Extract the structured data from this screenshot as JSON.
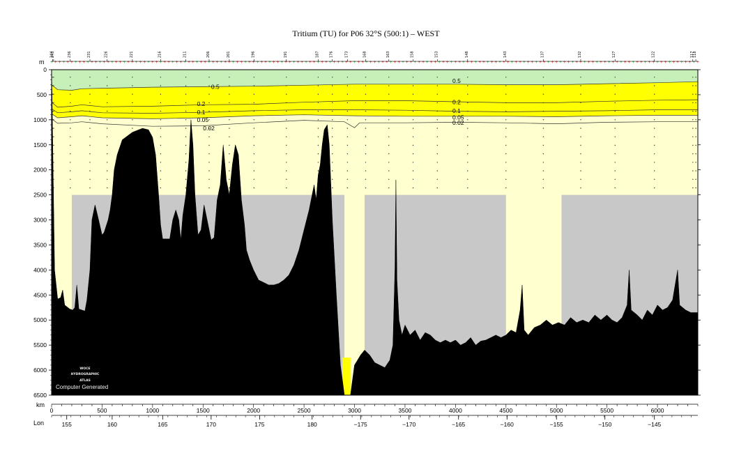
{
  "title": "Tritium (TU) for P06 32°S (500:1) – WEST",
  "logo": {
    "lines": [
      "WOCE",
      "HYDROGRAPHIC",
      "ATLAS"
    ],
    "generated": "Computer Generated"
  },
  "chart_data": {
    "type": "area",
    "title": "Tritium (TU) for P06 32°S (500:1) – WEST",
    "variable": "Tritium (TU)",
    "x_axis": {
      "label": "km",
      "range": [
        0,
        6400
      ],
      "ticks": [
        0,
        500,
        1000,
        1500,
        2000,
        2500,
        3000,
        3500,
        4000,
        4500,
        5000,
        5500,
        6000
      ]
    },
    "lon_axis": {
      "label": "Lon",
      "ticks": [
        {
          "km": 150,
          "label": "155"
        },
        {
          "km": 600,
          "label": "160"
        },
        {
          "km": 1100,
          "label": "165"
        },
        {
          "km": 1580,
          "label": "170"
        },
        {
          "km": 2060,
          "label": "175"
        },
        {
          "km": 2580,
          "label": "180"
        },
        {
          "km": 3060,
          "label": "−175"
        },
        {
          "km": 3540,
          "label": "−170"
        },
        {
          "km": 4030,
          "label": "−165"
        },
        {
          "km": 4510,
          "label": "−160"
        },
        {
          "km": 5000,
          "label": "−155"
        },
        {
          "km": 5480,
          "label": "−150"
        },
        {
          "km": 5970,
          "label": "−145"
        }
      ]
    },
    "y_axis": {
      "label": "m",
      "range": [
        0,
        6500
      ],
      "inverted": true,
      "ticks": [
        0,
        500,
        1000,
        1500,
        2000,
        2500,
        3000,
        3500,
        4000,
        4500,
        5000,
        5500,
        6000,
        6500
      ]
    },
    "stations": [
      {
        "km": 10,
        "label": "244"
      },
      {
        "km": 20,
        "label": "241"
      },
      {
        "km": 185,
        "label": "236"
      },
      {
        "km": 380,
        "label": "231"
      },
      {
        "km": 550,
        "label": "226"
      },
      {
        "km": 800,
        "label": "221"
      },
      {
        "km": 1080,
        "label": "216"
      },
      {
        "km": 1330,
        "label": "211"
      },
      {
        "km": 1560,
        "label": "206"
      },
      {
        "km": 1760,
        "label": "201"
      },
      {
        "km": 2005,
        "label": "196"
      },
      {
        "km": 2325,
        "label": "191"
      },
      {
        "km": 2640,
        "label": "187"
      },
      {
        "km": 2780,
        "label": "176"
      },
      {
        "km": 2930,
        "label": "173"
      },
      {
        "km": 3110,
        "label": "168"
      },
      {
        "km": 3340,
        "label": "163"
      },
      {
        "km": 3580,
        "label": "158"
      },
      {
        "km": 3820,
        "label": "153"
      },
      {
        "km": 4120,
        "label": "148"
      },
      {
        "km": 4500,
        "label": "143"
      },
      {
        "km": 4870,
        "label": "137"
      },
      {
        "km": 5240,
        "label": "132"
      },
      {
        "km": 5580,
        "label": "127"
      },
      {
        "km": 5970,
        "label": "122"
      },
      {
        "km": 6350,
        "label": "117"
      },
      {
        "km": 6380,
        "label": "118"
      }
    ],
    "contours": [
      {
        "level": "0.5",
        "color": "#c6f0b8",
        "depths": [
          [
            0,
            300
          ],
          [
            60,
            400
          ],
          [
            200,
            410
          ],
          [
            300,
            380
          ],
          [
            500,
            370
          ],
          [
            1000,
            350
          ],
          [
            1500,
            340
          ],
          [
            2000,
            330
          ],
          [
            2500,
            310
          ],
          [
            3000,
            290
          ],
          [
            3500,
            290
          ],
          [
            4000,
            290
          ],
          [
            4500,
            300
          ],
          [
            5000,
            300
          ],
          [
            5500,
            280
          ],
          [
            6000,
            260
          ],
          [
            6400,
            240
          ]
        ]
      },
      {
        "level": "0.2",
        "color": "#ffff00",
        "depths": [
          [
            0,
            650
          ],
          [
            60,
            750
          ],
          [
            200,
            730
          ],
          [
            300,
            700
          ],
          [
            500,
            740
          ],
          [
            1000,
            730
          ],
          [
            1500,
            700
          ],
          [
            2000,
            690
          ],
          [
            2500,
            650
          ],
          [
            3000,
            620
          ],
          [
            3500,
            620
          ],
          [
            4000,
            640
          ],
          [
            4500,
            660
          ],
          [
            5000,
            660
          ],
          [
            5500,
            630
          ],
          [
            6000,
            610
          ],
          [
            6400,
            600
          ]
        ]
      },
      {
        "level": "0.1",
        "color": "#ffff00",
        "depths": [
          [
            0,
            780
          ],
          [
            60,
            860
          ],
          [
            200,
            840
          ],
          [
            300,
            820
          ],
          [
            500,
            860
          ],
          [
            1000,
            870
          ],
          [
            1500,
            850
          ],
          [
            2000,
            820
          ],
          [
            2500,
            800
          ],
          [
            3000,
            800
          ],
          [
            3500,
            810
          ],
          [
            4000,
            830
          ],
          [
            4500,
            840
          ],
          [
            5000,
            830
          ],
          [
            5500,
            820
          ],
          [
            6000,
            800
          ],
          [
            6400,
            800
          ]
        ]
      },
      {
        "level": "0.05",
        "color": "#ffff00",
        "depths": [
          [
            0,
            880
          ],
          [
            60,
            960
          ],
          [
            200,
            940
          ],
          [
            300,
            920
          ],
          [
            500,
            960
          ],
          [
            1000,
            980
          ],
          [
            1500,
            960
          ],
          [
            2000,
            920
          ],
          [
            2500,
            900
          ],
          [
            3000,
            920
          ],
          [
            3500,
            930
          ],
          [
            4000,
            930
          ],
          [
            4500,
            930
          ],
          [
            5000,
            940
          ],
          [
            5500,
            920
          ],
          [
            6000,
            910
          ],
          [
            6400,
            910
          ]
        ]
      },
      {
        "level": "0.02",
        "color": "#ffffd0",
        "depths": [
          [
            0,
            980
          ],
          [
            60,
            1070
          ],
          [
            200,
            1060
          ],
          [
            300,
            1040
          ],
          [
            500,
            1080
          ],
          [
            1000,
            1130
          ],
          [
            1500,
            1120
          ],
          [
            2000,
            1060
          ],
          [
            2500,
            1010
          ],
          [
            2900,
            1040
          ],
          [
            3000,
            1160
          ],
          [
            3050,
            1060
          ],
          [
            3500,
            1060
          ],
          [
            4000,
            1050
          ],
          [
            4500,
            1060
          ],
          [
            5000,
            1080
          ],
          [
            5500,
            1050
          ],
          [
            6000,
            1040
          ],
          [
            6400,
            1040
          ]
        ]
      }
    ],
    "contour_labels": [
      {
        "text": "0.5",
        "km": 1580,
        "depth": 340
      },
      {
        "text": "0.2",
        "km": 1440,
        "depth": 680
      },
      {
        "text": "0.1",
        "km": 1440,
        "depth": 850
      },
      {
        "text": "0.05",
        "km": 1440,
        "depth": 1000
      },
      {
        "text": "0.02",
        "km": 1500,
        "depth": 1170
      },
      {
        "text": "0.5",
        "km": 3970,
        "depth": 220
      },
      {
        "text": "0.2",
        "km": 3970,
        "depth": 650
      },
      {
        "text": "0.1",
        "km": 3970,
        "depth": 820
      },
      {
        "text": "0.05",
        "km": 3970,
        "depth": 950
      },
      {
        "text": "0.02",
        "km": 3970,
        "depth": 1060
      }
    ],
    "no_data_regions": [
      {
        "km": [
          200,
          2900
        ],
        "depth": [
          2500,
          6500
        ]
      },
      {
        "km": [
          3100,
          4500
        ],
        "depth": [
          2500,
          6500
        ]
      },
      {
        "km": [
          5050,
          6400
        ],
        "depth": [
          2500,
          6500
        ]
      }
    ],
    "bottom_yellow": {
      "km": [
        2880,
        2960
      ],
      "depth": [
        5750,
        6500
      ]
    },
    "bathymetry": [
      [
        0,
        0
      ],
      [
        5,
        500
      ],
      [
        15,
        2000
      ],
      [
        30,
        4000
      ],
      [
        60,
        4580
      ],
      [
        90,
        4550
      ],
      [
        110,
        4400
      ],
      [
        130,
        4700
      ],
      [
        180,
        4780
      ],
      [
        210,
        4800
      ],
      [
        230,
        4750
      ],
      [
        250,
        4300
      ],
      [
        270,
        4780
      ],
      [
        330,
        4820
      ],
      [
        350,
        4600
      ],
      [
        380,
        4000
      ],
      [
        400,
        3000
      ],
      [
        430,
        2700
      ],
      [
        460,
        2950
      ],
      [
        500,
        3300
      ],
      [
        520,
        3250
      ],
      [
        560,
        3000
      ],
      [
        580,
        2800
      ],
      [
        600,
        2500
      ],
      [
        620,
        2000
      ],
      [
        650,
        1700
      ],
      [
        700,
        1400
      ],
      [
        800,
        1250
      ],
      [
        900,
        1170
      ],
      [
        960,
        1200
      ],
      [
        1000,
        1350
      ],
      [
        1030,
        1700
      ],
      [
        1060,
        2500
      ],
      [
        1080,
        3100
      ],
      [
        1100,
        3380
      ],
      [
        1170,
        3380
      ],
      [
        1200,
        3000
      ],
      [
        1230,
        2800
      ],
      [
        1260,
        3000
      ],
      [
        1280,
        3400
      ],
      [
        1300,
        2900
      ],
      [
        1330,
        2500
      ],
      [
        1360,
        1800
      ],
      [
        1380,
        1000
      ],
      [
        1400,
        1500
      ],
      [
        1420,
        2500
      ],
      [
        1450,
        3300
      ],
      [
        1480,
        3200
      ],
      [
        1510,
        2700
      ],
      [
        1540,
        3000
      ],
      [
        1580,
        3400
      ],
      [
        1610,
        3350
      ],
      [
        1640,
        2600
      ],
      [
        1670,
        2300
      ],
      [
        1700,
        1500
      ],
      [
        1730,
        2200
      ],
      [
        1760,
        2500
      ],
      [
        1790,
        1900
      ],
      [
        1820,
        1500
      ],
      [
        1850,
        1700
      ],
      [
        1880,
        2600
      ],
      [
        1910,
        3100
      ],
      [
        1930,
        3600
      ],
      [
        1960,
        3800
      ],
      [
        2000,
        4000
      ],
      [
        2050,
        4200
      ],
      [
        2100,
        4250
      ],
      [
        2150,
        4300
      ],
      [
        2200,
        4300
      ],
      [
        2250,
        4270
      ],
      [
        2300,
        4200
      ],
      [
        2350,
        4100
      ],
      [
        2400,
        3900
      ],
      [
        2450,
        3600
      ],
      [
        2500,
        3200
      ],
      [
        2550,
        2800
      ],
      [
        2580,
        2500
      ],
      [
        2600,
        2300
      ],
      [
        2620,
        2600
      ],
      [
        2640,
        2100
      ],
      [
        2660,
        1900
      ],
      [
        2680,
        1500
      ],
      [
        2700,
        1200
      ],
      [
        2730,
        1100
      ],
      [
        2750,
        1500
      ],
      [
        2780,
        3000
      ],
      [
        2820,
        4500
      ],
      [
        2860,
        5900
      ],
      [
        2880,
        6200
      ],
      [
        2900,
        6500
      ],
      [
        2960,
        6500
      ],
      [
        2980,
        6200
      ],
      [
        3000,
        5900
      ],
      [
        3030,
        5800
      ],
      [
        3060,
        5700
      ],
      [
        3100,
        5600
      ],
      [
        3150,
        5700
      ],
      [
        3200,
        5850
      ],
      [
        3250,
        5900
      ],
      [
        3300,
        5950
      ],
      [
        3350,
        5800
      ],
      [
        3380,
        5500
      ],
      [
        3400,
        4000
      ],
      [
        3410,
        2200
      ],
      [
        3420,
        4200
      ],
      [
        3440,
        5000
      ],
      [
        3470,
        5300
      ],
      [
        3500,
        5100
      ],
      [
        3550,
        5300
      ],
      [
        3600,
        5200
      ],
      [
        3650,
        5400
      ],
      [
        3700,
        5250
      ],
      [
        3750,
        5300
      ],
      [
        3800,
        5400
      ],
      [
        3850,
        5450
      ],
      [
        3900,
        5400
      ],
      [
        3950,
        5450
      ],
      [
        4000,
        5400
      ],
      [
        4050,
        5500
      ],
      [
        4100,
        5450
      ],
      [
        4150,
        5350
      ],
      [
        4200,
        5500
      ],
      [
        4250,
        5420
      ],
      [
        4300,
        5400
      ],
      [
        4350,
        5350
      ],
      [
        4400,
        5300
      ],
      [
        4450,
        5350
      ],
      [
        4500,
        5300
      ],
      [
        4550,
        5200
      ],
      [
        4600,
        5250
      ],
      [
        4640,
        4800
      ],
      [
        4660,
        4300
      ],
      [
        4680,
        5200
      ],
      [
        4720,
        5300
      ],
      [
        4780,
        5150
      ],
      [
        4840,
        5100
      ],
      [
        4900,
        5000
      ],
      [
        4960,
        5100
      ],
      [
        5020,
        5050
      ],
      [
        5080,
        5100
      ],
      [
        5140,
        4950
      ],
      [
        5200,
        5050
      ],
      [
        5260,
        5000
      ],
      [
        5320,
        5050
      ],
      [
        5380,
        4900
      ],
      [
        5440,
        5000
      ],
      [
        5500,
        4900
      ],
      [
        5550,
        5000
      ],
      [
        5600,
        5050
      ],
      [
        5650,
        4950
      ],
      [
        5700,
        4700
      ],
      [
        5720,
        4000
      ],
      [
        5740,
        4800
      ],
      [
        5800,
        4900
      ],
      [
        5850,
        5000
      ],
      [
        5900,
        4800
      ],
      [
        5950,
        4900
      ],
      [
        6000,
        4700
      ],
      [
        6050,
        4800
      ],
      [
        6100,
        4750
      ],
      [
        6150,
        4600
      ],
      [
        6200,
        4000
      ],
      [
        6220,
        4700
      ],
      [
        6280,
        4800
      ],
      [
        6330,
        4850
      ],
      [
        6400,
        4850
      ]
    ]
  }
}
